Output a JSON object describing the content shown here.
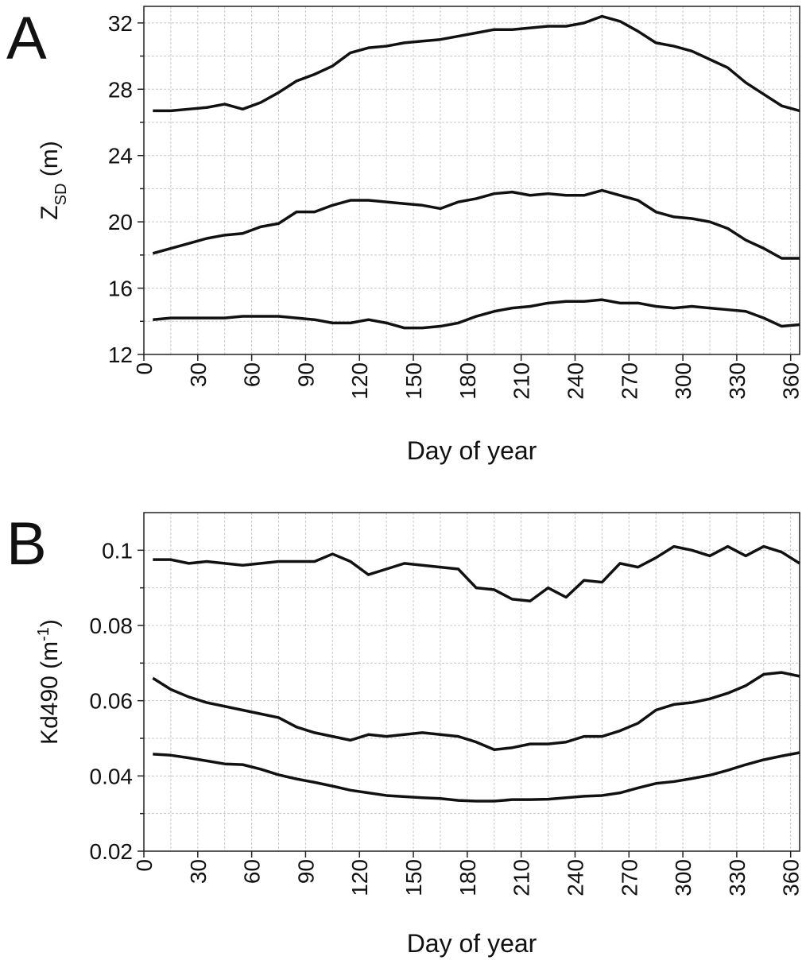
{
  "chart_data": [
    {
      "type": "line",
      "panel_label": "A",
      "xlabel": "Day of year",
      "ylabel_parts": [
        "Z",
        "SD",
        " (m)"
      ],
      "ylabel_part_styles": [
        "normal",
        "sub",
        "normal"
      ],
      "x": [
        5,
        15,
        25,
        35,
        45,
        55,
        65,
        75,
        85,
        95,
        105,
        115,
        125,
        135,
        145,
        155,
        165,
        175,
        185,
        195,
        205,
        215,
        225,
        235,
        245,
        255,
        265,
        275,
        285,
        295,
        305,
        315,
        325,
        335,
        345,
        355,
        365
      ],
      "series": [
        {
          "color": "#111111",
          "values": [
            26.7,
            26.7,
            26.8,
            26.9,
            27.1,
            26.8,
            27.2,
            27.8,
            28.5,
            28.9,
            29.4,
            30.2,
            30.5,
            30.6,
            30.8,
            30.9,
            31.0,
            31.2,
            31.4,
            31.6,
            31.6,
            31.7,
            31.8,
            31.8,
            32.0,
            32.4,
            32.1,
            31.5,
            30.8,
            30.6,
            30.3,
            29.8,
            29.3,
            28.4,
            27.7,
            27.0,
            26.7
          ]
        },
        {
          "color": "#111111",
          "values": [
            18.1,
            18.4,
            18.7,
            19.0,
            19.2,
            19.3,
            19.7,
            19.9,
            20.6,
            20.6,
            21.0,
            21.3,
            21.3,
            21.2,
            21.1,
            21.0,
            20.8,
            21.2,
            21.4,
            21.7,
            21.8,
            21.6,
            21.7,
            21.6,
            21.6,
            21.9,
            21.6,
            21.3,
            20.6,
            20.3,
            20.2,
            20.0,
            19.6,
            18.9,
            18.4,
            17.8,
            17.8
          ]
        },
        {
          "color": "#111111",
          "values": [
            14.1,
            14.2,
            14.2,
            14.2,
            14.2,
            14.3,
            14.3,
            14.3,
            14.2,
            14.1,
            13.9,
            13.9,
            14.1,
            13.9,
            13.6,
            13.6,
            13.7,
            13.9,
            14.3,
            14.6,
            14.8,
            14.9,
            15.1,
            15.2,
            15.2,
            15.3,
            15.1,
            15.1,
            14.9,
            14.8,
            14.9,
            14.8,
            14.7,
            14.6,
            14.2,
            13.7,
            13.8
          ]
        }
      ],
      "xlim": [
        0,
        365
      ],
      "xticks": [
        0,
        30,
        60,
        90,
        120,
        150,
        180,
        210,
        240,
        270,
        300,
        330,
        360
      ],
      "xminorticks": [
        15,
        45,
        75,
        105,
        135,
        165,
        195,
        225,
        255,
        285,
        315,
        345
      ],
      "ylim": [
        12,
        33
      ],
      "yticks": [
        12,
        16,
        20,
        24,
        28,
        32
      ],
      "yminorticks": [
        14,
        18,
        22,
        26,
        30
      ],
      "grid": true
    },
    {
      "type": "line",
      "panel_label": "B",
      "xlabel": "Day of year",
      "ylabel_parts": [
        "Kd490 (m",
        "-1",
        ")"
      ],
      "ylabel_part_styles": [
        "normal",
        "sup",
        "normal"
      ],
      "x": [
        5,
        15,
        25,
        35,
        45,
        55,
        65,
        75,
        85,
        95,
        105,
        115,
        125,
        135,
        145,
        155,
        165,
        175,
        185,
        195,
        205,
        215,
        225,
        235,
        245,
        255,
        265,
        275,
        285,
        295,
        305,
        315,
        325,
        335,
        345,
        355,
        365
      ],
      "series": [
        {
          "color": "#111111",
          "values": [
            0.0975,
            0.0975,
            0.0965,
            0.097,
            0.0965,
            0.096,
            0.0965,
            0.097,
            0.097,
            0.097,
            0.099,
            0.097,
            0.0935,
            0.095,
            0.0965,
            0.096,
            0.0955,
            0.095,
            0.09,
            0.0895,
            0.087,
            0.0865,
            0.09,
            0.0875,
            0.092,
            0.0915,
            0.0965,
            0.0955,
            0.098,
            0.101,
            0.1,
            0.0985,
            0.101,
            0.0985,
            0.101,
            0.0995,
            0.0965
          ]
        },
        {
          "color": "#111111",
          "values": [
            0.066,
            0.063,
            0.061,
            0.0595,
            0.0585,
            0.0575,
            0.0565,
            0.0555,
            0.053,
            0.0515,
            0.0505,
            0.0495,
            0.051,
            0.0505,
            0.051,
            0.0515,
            0.051,
            0.0505,
            0.049,
            0.047,
            0.0475,
            0.0485,
            0.0485,
            0.049,
            0.0505,
            0.0505,
            0.052,
            0.054,
            0.0575,
            0.059,
            0.0595,
            0.0605,
            0.062,
            0.064,
            0.067,
            0.0675,
            0.0665
          ]
        },
        {
          "color": "#111111",
          "values": [
            0.0458,
            0.0455,
            0.0448,
            0.044,
            0.0432,
            0.043,
            0.0418,
            0.0403,
            0.0392,
            0.0383,
            0.0373,
            0.0362,
            0.0355,
            0.0348,
            0.0345,
            0.0342,
            0.034,
            0.0335,
            0.0333,
            0.0333,
            0.0337,
            0.0337,
            0.0338,
            0.0342,
            0.0346,
            0.0348,
            0.0355,
            0.0368,
            0.038,
            0.0385,
            0.0393,
            0.0402,
            0.0415,
            0.043,
            0.0443,
            0.0453,
            0.0462
          ]
        }
      ],
      "xlim": [
        0,
        365
      ],
      "xticks": [
        0,
        30,
        60,
        90,
        120,
        150,
        180,
        210,
        240,
        270,
        300,
        330,
        360
      ],
      "xminorticks": [
        15,
        45,
        75,
        105,
        135,
        165,
        195,
        225,
        255,
        285,
        315,
        345
      ],
      "ylim": [
        0.02,
        0.11
      ],
      "yticks": [
        0.02,
        0.04,
        0.06,
        0.08,
        0.1
      ],
      "yminorticks": [
        0.03,
        0.05,
        0.07,
        0.09
      ],
      "grid": true
    }
  ]
}
